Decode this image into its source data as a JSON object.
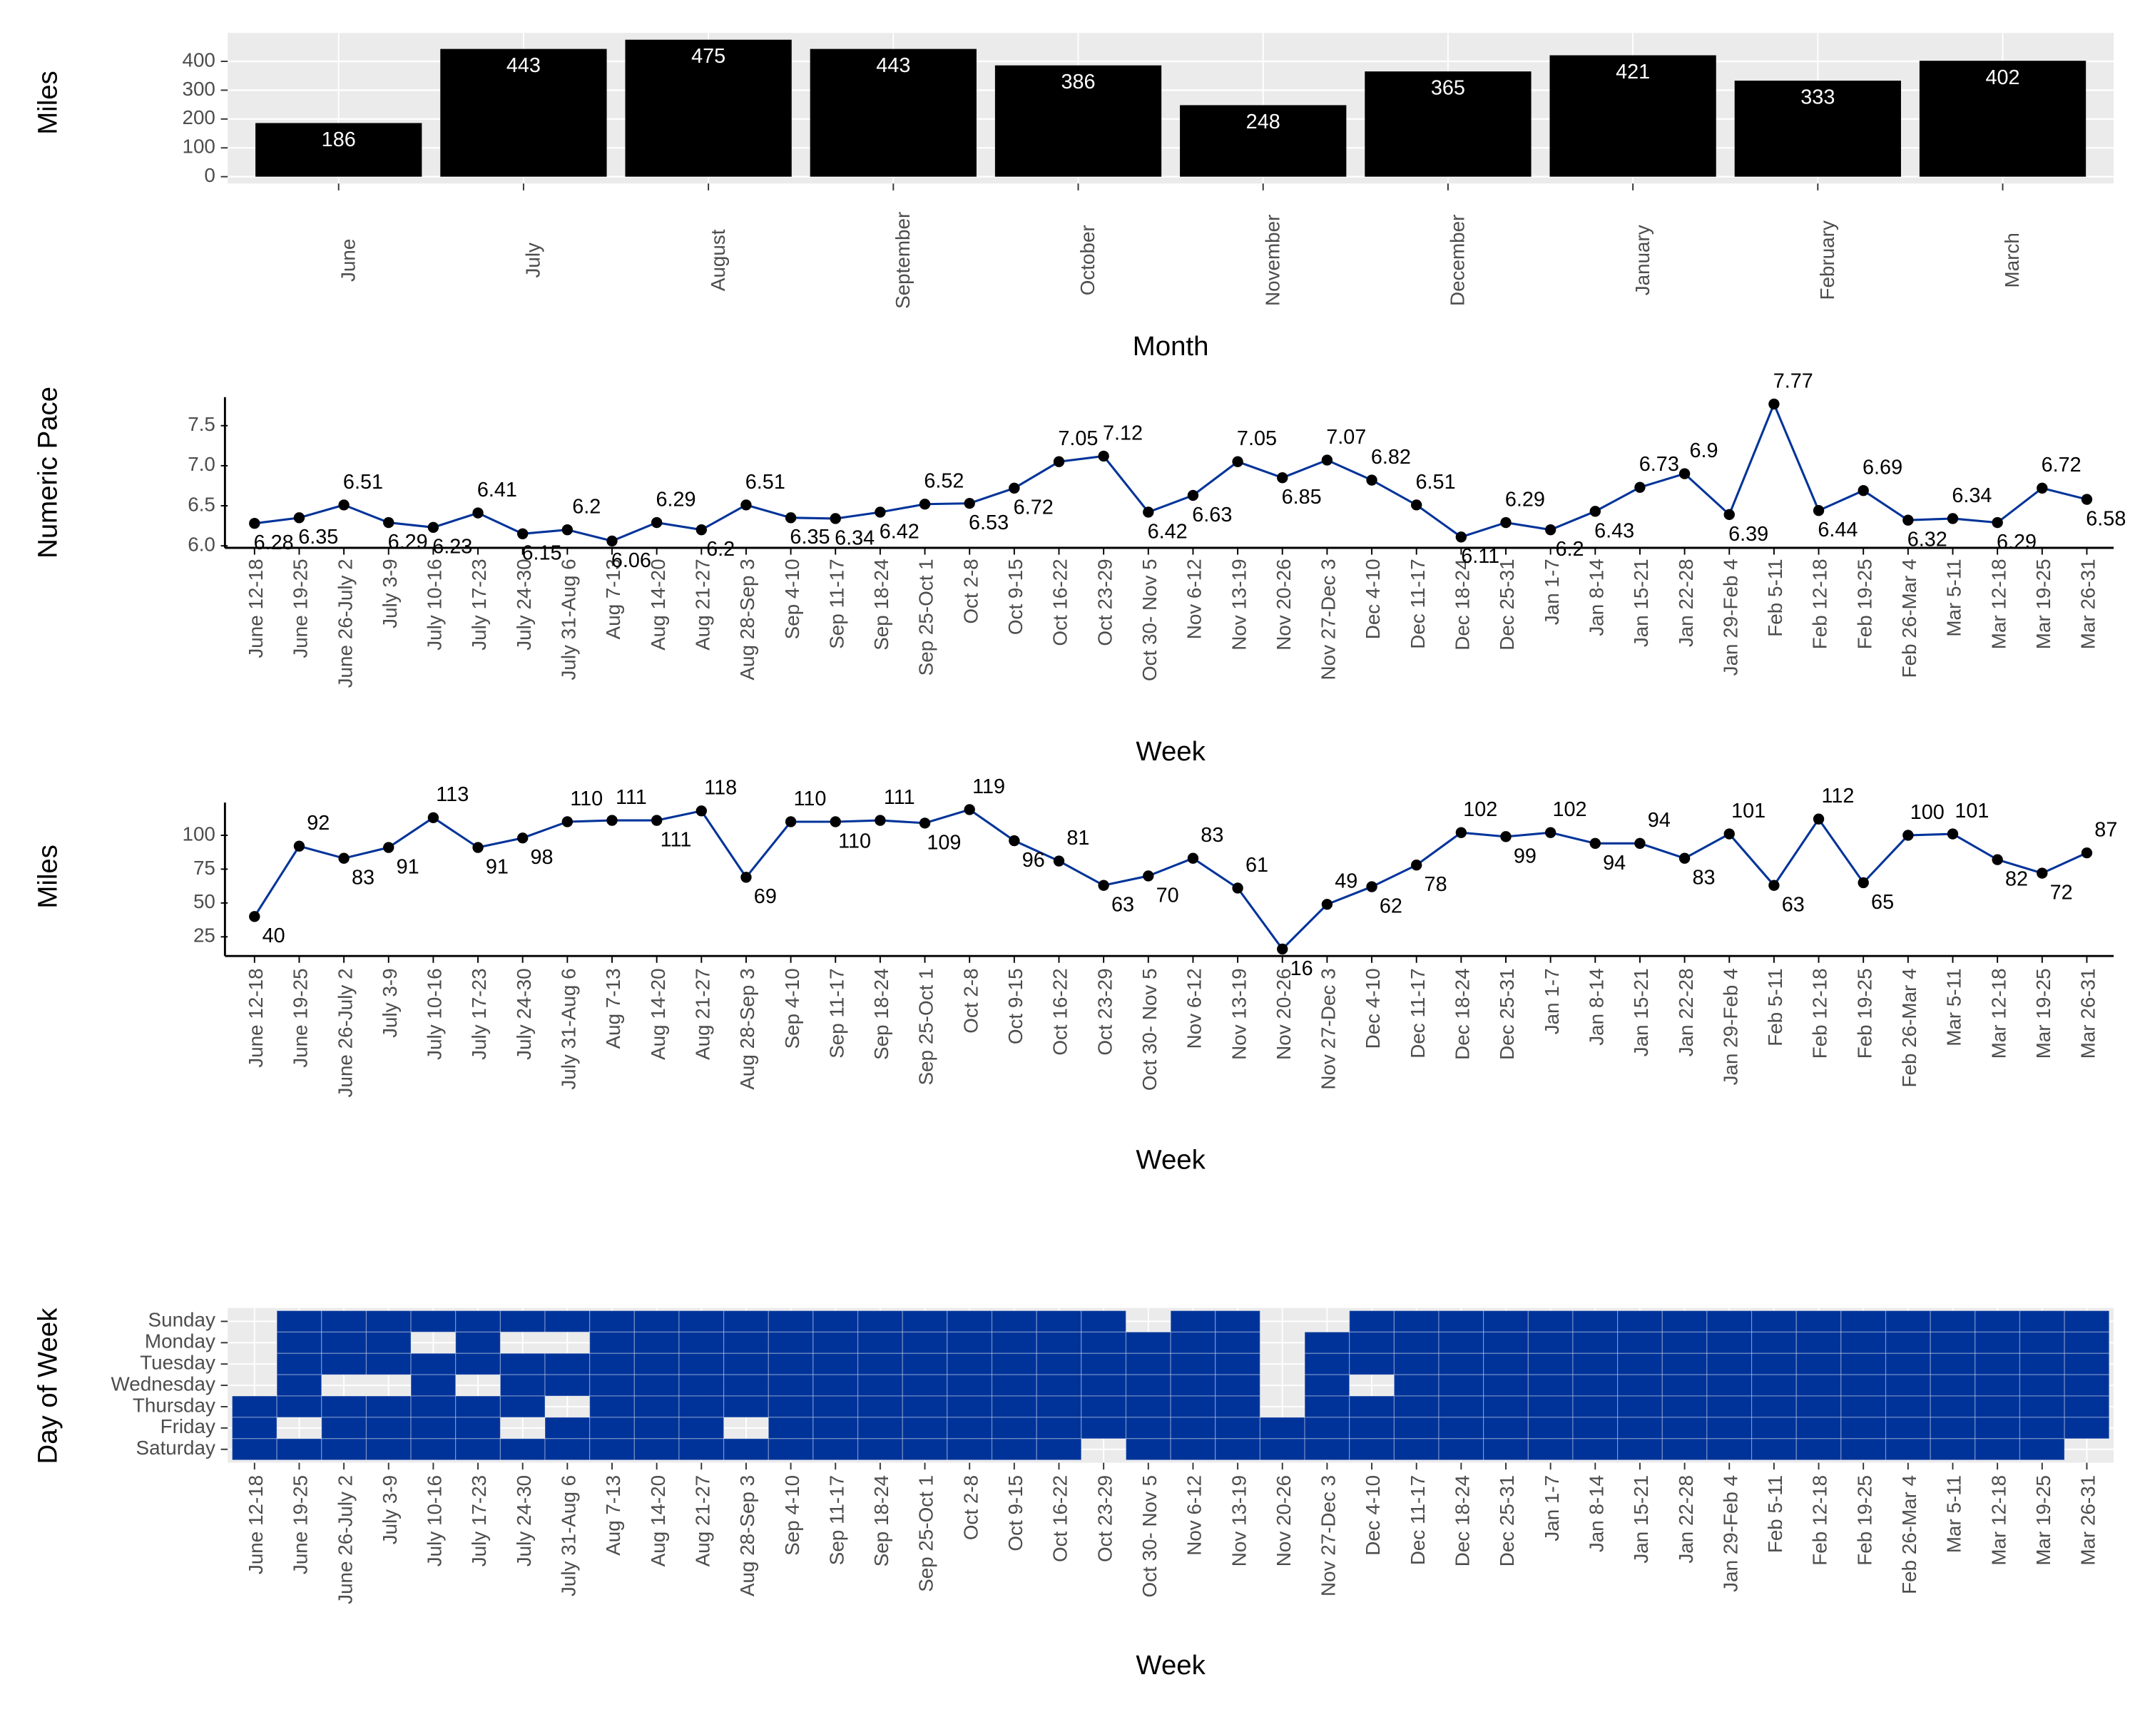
{
  "chart_data": [
    {
      "type": "bar",
      "x_label": "Month",
      "y_label": "Miles",
      "categories": [
        "June",
        "July",
        "August",
        "September",
        "October",
        "November",
        "December",
        "January",
        "February",
        "March"
      ],
      "values": [
        186,
        443,
        475,
        443,
        386,
        248,
        365,
        421,
        333,
        402
      ],
      "color": "#000000",
      "ylim": [
        -23.75,
        498.75
      ],
      "yticks": [
        0,
        100,
        200,
        300,
        400
      ],
      "grid": true
    },
    {
      "type": "line",
      "x_label": "Week",
      "y_label": "Numeric Pace",
      "categories": [
        "June 12-18",
        "June 19-25",
        "June 26-July 2",
        "July 3-9",
        "July 10-16",
        "July 17-23",
        "July 24-30",
        "July 31-Aug 6",
        "Aug 7-13",
        "Aug 14-20",
        "Aug 21-27",
        "Aug 28-Sep 3",
        "Sep 4-10",
        "Sep 11-17",
        "Sep 18-24",
        "Sep 25-Oct 1",
        "Oct 2-8",
        "Oct 9-15",
        "Oct 16-22",
        "Oct 23-29",
        "Oct 30- Nov 5",
        "Nov 6-12",
        "Nov 13-19",
        "Nov 20-26",
        "Nov 27-Dec 3",
        "Dec 4-10",
        "Dec 11-17",
        "Dec 18-24",
        "Dec 25-31",
        "Jan 1-7",
        "Jan 8-14",
        "Jan 15-21",
        "Jan 22-28",
        "Jan 29-Feb 4",
        "Feb 5-11",
        "Feb 12-18",
        "Feb 19-25",
        "Feb 26-Mar 4",
        "Mar 5-11",
        "Mar 12-18",
        "Mar 19-25",
        "Mar 26-31"
      ],
      "values": [
        6.28,
        6.35,
        6.51,
        6.29,
        6.23,
        6.41,
        6.15,
        6.2,
        6.06,
        6.29,
        6.2,
        6.51,
        6.35,
        6.34,
        6.42,
        6.52,
        6.53,
        6.72,
        7.05,
        7.12,
        6.42,
        6.63,
        7.05,
        6.85,
        7.07,
        6.82,
        6.51,
        6.11,
        6.29,
        6.2,
        6.43,
        6.73,
        6.9,
        6.39,
        7.77,
        6.44,
        6.69,
        6.32,
        6.34,
        6.29,
        6.72,
        6.58
      ],
      "color": "#003399",
      "point_color": "#000000",
      "ylim": [
        5.9745,
        7.8555
      ],
      "yticks": [
        {
          "value": 6,
          "label": "6.0"
        },
        6.5,
        {
          "value": 7,
          "label": "7.0"
        },
        7.5
      ]
    },
    {
      "type": "line",
      "x_label": "Week",
      "y_label": "Miles",
      "categories": [
        "June 12-18",
        "June 19-25",
        "June 26-July 2",
        "July 3-9",
        "July 10-16",
        "July 17-23",
        "July 24-30",
        "July 31-Aug 6",
        "Aug 7-13",
        "Aug 14-20",
        "Aug 21-27",
        "Aug 28-Sep 3",
        "Sep 4-10",
        "Sep 11-17",
        "Sep 18-24",
        "Sep 25-Oct 1",
        "Oct 2-8",
        "Oct 9-15",
        "Oct 16-22",
        "Oct 23-29",
        "Oct 30- Nov 5",
        "Nov 6-12",
        "Nov 13-19",
        "Nov 20-26",
        "Nov 27-Dec 3",
        "Dec 4-10",
        "Dec 11-17",
        "Dec 18-24",
        "Dec 25-31",
        "Jan 1-7",
        "Jan 8-14",
        "Jan 15-21",
        "Jan 22-28",
        "Jan 29-Feb 4",
        "Feb 5-11",
        "Feb 12-18",
        "Feb 19-25",
        "Feb 26-Mar 4",
        "Mar 5-11",
        "Mar 12-18",
        "Mar 19-25",
        "Mar 26-31"
      ],
      "values": [
        40,
        92,
        83,
        91,
        113,
        91,
        98,
        110,
        111,
        111,
        118,
        69,
        110,
        110,
        111,
        109,
        119,
        96,
        81,
        63,
        70,
        83,
        61,
        16,
        49,
        62,
        78,
        102,
        99,
        102,
        94,
        94,
        83,
        101,
        63,
        112,
        65,
        100,
        101,
        82,
        72,
        87
      ],
      "color": "#003399",
      "point_color": "#000000",
      "ylim": [
        10.85,
        124.15
      ],
      "yticks": [
        25,
        50,
        75,
        100
      ]
    },
    {
      "type": "heatmap",
      "x_label": "Week",
      "y_label": "Day of Week",
      "categories": [
        "June 12-18",
        "June 19-25",
        "June 26-July 2",
        "July 3-9",
        "July 10-16",
        "July 17-23",
        "July 24-30",
        "July 31-Aug 6",
        "Aug 7-13",
        "Aug 14-20",
        "Aug 21-27",
        "Aug 28-Sep 3",
        "Sep 4-10",
        "Sep 11-17",
        "Sep 18-24",
        "Sep 25-Oct 1",
        "Oct 2-8",
        "Oct 9-15",
        "Oct 16-22",
        "Oct 23-29",
        "Oct 30- Nov 5",
        "Nov 6-12",
        "Nov 13-19",
        "Nov 20-26",
        "Nov 27-Dec 3",
        "Dec 4-10",
        "Dec 11-17",
        "Dec 18-24",
        "Dec 25-31",
        "Jan 1-7",
        "Jan 8-14",
        "Jan 15-21",
        "Jan 22-28",
        "Jan 29-Feb 4",
        "Feb 5-11",
        "Feb 12-18",
        "Feb 19-25",
        "Feb 26-Mar 4",
        "Mar 5-11",
        "Mar 12-18",
        "Mar 19-25",
        "Mar 26-31"
      ],
      "rows": [
        "Sunday",
        "Monday",
        "Tuesday",
        "Wednesday",
        "Thursday",
        "Friday",
        "Saturday"
      ],
      "values": [
        [
          0,
          1,
          1,
          1,
          1,
          1,
          1,
          1,
          1,
          1,
          1,
          1,
          1,
          1,
          1,
          1,
          1,
          1,
          1,
          1,
          0,
          1,
          1,
          0,
          0,
          1,
          1,
          1,
          1,
          1,
          1,
          1,
          1,
          1,
          1,
          1,
          1,
          1,
          1,
          1,
          1,
          1
        ],
        [
          0,
          1,
          1,
          1,
          0,
          1,
          0,
          0,
          1,
          1,
          1,
          1,
          1,
          1,
          1,
          1,
          1,
          1,
          1,
          1,
          1,
          1,
          1,
          0,
          1,
          1,
          1,
          1,
          1,
          1,
          1,
          1,
          1,
          1,
          1,
          1,
          1,
          1,
          1,
          1,
          1,
          1
        ],
        [
          0,
          1,
          1,
          1,
          1,
          1,
          1,
          1,
          1,
          1,
          1,
          1,
          1,
          1,
          1,
          1,
          1,
          1,
          1,
          1,
          1,
          1,
          1,
          0,
          1,
          1,
          1,
          1,
          1,
          1,
          1,
          1,
          1,
          1,
          1,
          1,
          1,
          1,
          1,
          1,
          1,
          1
        ],
        [
          0,
          1,
          0,
          0,
          1,
          0,
          1,
          1,
          1,
          1,
          1,
          1,
          1,
          1,
          1,
          1,
          1,
          1,
          1,
          1,
          1,
          1,
          1,
          0,
          1,
          0,
          1,
          1,
          1,
          1,
          1,
          1,
          1,
          1,
          1,
          1,
          1,
          1,
          1,
          1,
          1,
          1
        ],
        [
          1,
          1,
          1,
          1,
          1,
          1,
          1,
          0,
          1,
          1,
          1,
          1,
          1,
          1,
          1,
          1,
          1,
          1,
          1,
          1,
          1,
          1,
          1,
          0,
          1,
          1,
          1,
          1,
          1,
          1,
          1,
          1,
          1,
          1,
          1,
          1,
          1,
          1,
          1,
          1,
          1,
          1
        ],
        [
          1,
          0,
          1,
          1,
          1,
          1,
          0,
          1,
          1,
          1,
          1,
          0,
          1,
          1,
          1,
          1,
          1,
          1,
          1,
          1,
          1,
          1,
          1,
          1,
          1,
          1,
          1,
          1,
          1,
          1,
          1,
          1,
          1,
          1,
          1,
          1,
          1,
          1,
          1,
          1,
          1,
          1
        ],
        [
          1,
          1,
          1,
          1,
          1,
          1,
          1,
          1,
          1,
          1,
          1,
          1,
          1,
          1,
          1,
          1,
          1,
          1,
          1,
          0,
          1,
          1,
          1,
          1,
          1,
          1,
          1,
          1,
          1,
          1,
          1,
          1,
          1,
          1,
          1,
          1,
          1,
          1,
          1,
          1,
          1,
          0
        ]
      ],
      "color": "#003399"
    }
  ]
}
